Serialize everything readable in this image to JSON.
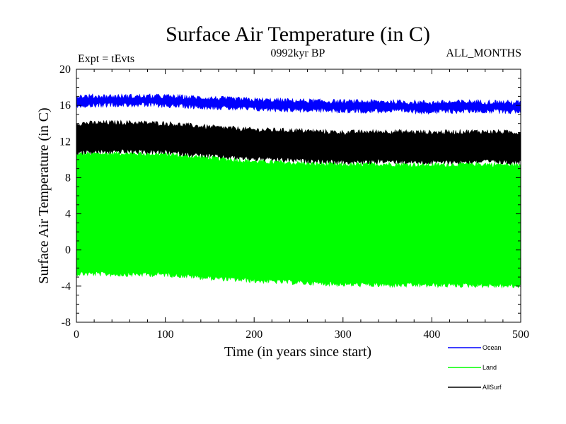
{
  "chart_data": {
    "type": "area",
    "title": "Surface Air Temperature (in C)",
    "subtitle_left": "Expt = tEvts",
    "subtitle_center": "0992kyr BP",
    "subtitle_right": "ALL_MONTHS",
    "xlabel": "Time (in years since start)",
    "ylabel": "Surface Air Temperature (in C)",
    "xlim": [
      0,
      500
    ],
    "ylim": [
      -8,
      20
    ],
    "xticks": [
      0,
      100,
      200,
      300,
      400,
      500
    ],
    "yticks": [
      -8,
      -4,
      0,
      4,
      8,
      12,
      16,
      20
    ],
    "xtick_labels": [
      "0",
      "100",
      "200",
      "300",
      "400",
      "500"
    ],
    "ytick_labels": [
      "-8",
      "-4",
      "0",
      "4",
      "8",
      "12",
      "16",
      "20"
    ],
    "grid": false,
    "legend_position": "bottom-right",
    "series": [
      {
        "name": "Land",
        "color": "#00ff00",
        "x": [
          0,
          50,
          100,
          150,
          200,
          250,
          300,
          350,
          400,
          450,
          500
        ],
        "upper": [
          10.6,
          10.7,
          10.6,
          10.2,
          9.8,
          9.6,
          9.4,
          9.5,
          9.4,
          9.5,
          9.4
        ],
        "lower": [
          -2.6,
          -2.7,
          -2.7,
          -3.1,
          -3.4,
          -3.6,
          -3.8,
          -3.9,
          -3.9,
          -3.9,
          -4.0
        ]
      },
      {
        "name": "AllSurf",
        "color": "#000000",
        "x": [
          0,
          50,
          100,
          150,
          200,
          250,
          300,
          350,
          400,
          450,
          500
        ],
        "upper": [
          14.0,
          14.1,
          14.0,
          13.6,
          13.3,
          13.2,
          13.0,
          13.1,
          13.0,
          13.1,
          13.0
        ],
        "lower": [
          10.8,
          10.9,
          10.8,
          10.4,
          10.1,
          9.9,
          9.7,
          9.8,
          9.7,
          9.8,
          9.7
        ]
      },
      {
        "name": "Ocean",
        "color": "#0000ff",
        "x": [
          0,
          50,
          100,
          150,
          200,
          250,
          300,
          350,
          400,
          450,
          500
        ],
        "upper": [
          17.0,
          17.0,
          17.0,
          16.8,
          16.6,
          16.5,
          16.4,
          16.4,
          16.3,
          16.4,
          16.3
        ],
        "lower": [
          16.0,
          16.1,
          16.0,
          15.8,
          15.6,
          15.5,
          15.4,
          15.4,
          15.3,
          15.4,
          15.3
        ]
      }
    ],
    "legend": [
      {
        "name": "Ocean",
        "color": "#0000ff"
      },
      {
        "name": "Land",
        "color": "#00ff00"
      },
      {
        "name": "AllSurf",
        "color": "#000000"
      }
    ]
  }
}
